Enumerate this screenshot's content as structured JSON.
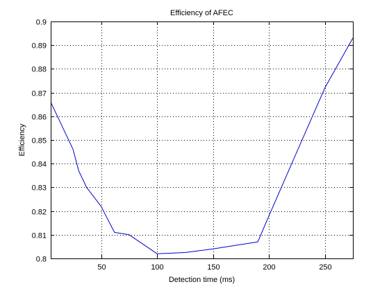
{
  "chart_data": {
    "type": "line",
    "title": "Efficiency of AFEC",
    "xlabel": "Detection time (ms)",
    "ylabel": "Efficiency",
    "xlim": [
      5,
      275
    ],
    "ylim": [
      0.8,
      0.9
    ],
    "xticks": [
      50,
      100,
      150,
      200,
      250
    ],
    "xtick_labels": [
      "50",
      "100",
      "150",
      "200",
      "250"
    ],
    "yticks": [
      0.8,
      0.81,
      0.82,
      0.83,
      0.84,
      0.85,
      0.86,
      0.87,
      0.88,
      0.89,
      0.9
    ],
    "ytick_labels": [
      "0.8",
      "0.81",
      "0.82",
      "0.83",
      "0.84",
      "0.85",
      "0.86",
      "0.87",
      "0.88",
      "0.89",
      "0.9"
    ],
    "grid": true,
    "grid_style": "dotted",
    "series": [
      {
        "color": "#0000cc",
        "x": [
          5,
          25,
          30,
          37,
          50,
          62,
          75,
          100,
          125,
          150,
          190,
          200,
          225,
          250,
          275
        ],
        "y": [
          0.866,
          0.846,
          0.837,
          0.83,
          0.822,
          0.811,
          0.81,
          0.802,
          0.8025,
          0.804,
          0.807,
          0.818,
          0.845,
          0.872,
          0.893
        ]
      }
    ]
  }
}
